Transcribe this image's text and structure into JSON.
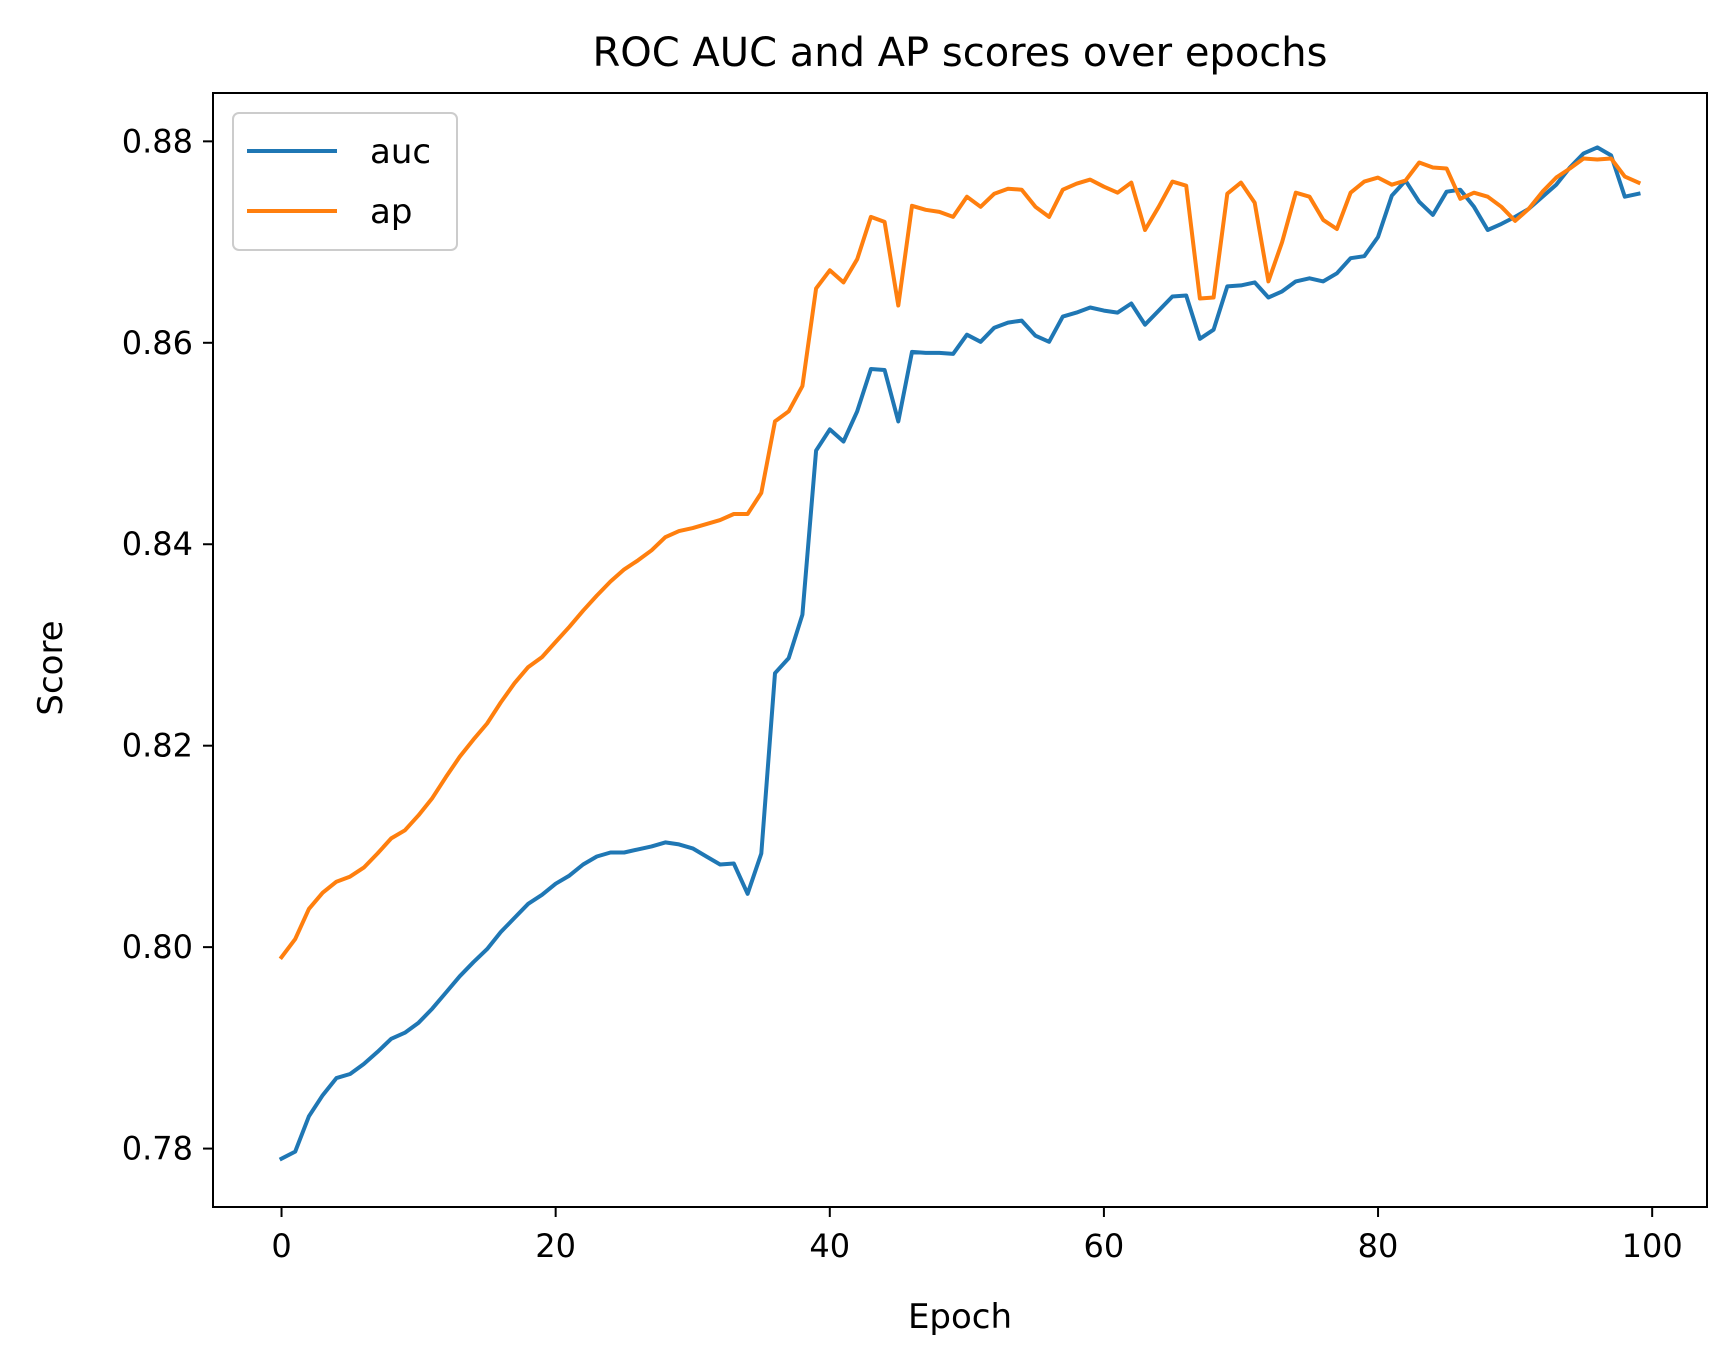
{
  "chart_data": {
    "type": "line",
    "title": "ROC AUC and AP scores over epochs",
    "xlabel": "Epoch",
    "ylabel": "Score",
    "xlim": [
      -5,
      104
    ],
    "ylim": [
      0.7742,
      0.8848
    ],
    "xticks": [
      0,
      20,
      40,
      60,
      80,
      100
    ],
    "xtick_labels": [
      "0",
      "20",
      "40",
      "60",
      "80",
      "100"
    ],
    "yticks": [
      0.78,
      0.8,
      0.82,
      0.84,
      0.86,
      0.88
    ],
    "ytick_labels": [
      "0.78",
      "0.80",
      "0.82",
      "0.84",
      "0.86",
      "0.88"
    ],
    "grid": false,
    "legend": "top-left",
    "x": [
      0,
      1,
      2,
      3,
      4,
      5,
      6,
      7,
      8,
      9,
      10,
      11,
      12,
      13,
      14,
      15,
      16,
      17,
      18,
      19,
      20,
      21,
      22,
      23,
      24,
      25,
      26,
      27,
      28,
      29,
      30,
      31,
      32,
      33,
      34,
      35,
      36,
      37,
      38,
      39,
      40,
      41,
      42,
      43,
      44,
      45,
      46,
      47,
      48,
      49,
      50,
      51,
      52,
      53,
      54,
      55,
      56,
      57,
      58,
      59,
      60,
      61,
      62,
      63,
      64,
      65,
      66,
      67,
      68,
      69,
      70,
      71,
      72,
      73,
      74,
      75,
      76,
      77,
      78,
      79,
      80,
      81,
      82,
      83,
      84,
      85,
      86,
      87,
      88,
      89,
      90,
      91,
      92,
      93,
      94,
      95,
      96,
      97,
      98,
      99
    ],
    "series": [
      {
        "name": "auc",
        "color": "#1f77b4",
        "values": [
          0.779,
          0.7797,
          0.7832,
          0.7853,
          0.787,
          0.7874,
          0.7884,
          0.7896,
          0.7909,
          0.7915,
          0.7925,
          0.7939,
          0.7955,
          0.7971,
          0.7985,
          0.7998,
          0.8015,
          0.8029,
          0.8043,
          0.8052,
          0.8063,
          0.8071,
          0.8082,
          0.809,
          0.8094,
          0.8094,
          0.8097,
          0.81,
          0.8104,
          0.8102,
          0.8098,
          0.809,
          0.8082,
          0.8083,
          0.8053,
          0.8093,
          0.8272,
          0.8287,
          0.833,
          0.8493,
          0.8514,
          0.8502,
          0.8532,
          0.8574,
          0.8573,
          0.8522,
          0.8591,
          0.859,
          0.859,
          0.8589,
          0.8608,
          0.8601,
          0.8615,
          0.862,
          0.8622,
          0.8607,
          0.8601,
          0.8626,
          0.863,
          0.8635,
          0.8632,
          0.863,
          0.8639,
          0.8618,
          0.8632,
          0.8646,
          0.8647,
          0.8604,
          0.8613,
          0.8656,
          0.8657,
          0.866,
          0.8645,
          0.8651,
          0.8661,
          0.8664,
          0.8661,
          0.8669,
          0.8684,
          0.8686,
          0.8705,
          0.8746,
          0.8761,
          0.874,
          0.8727,
          0.875,
          0.8752,
          0.8735,
          0.8712,
          0.8718,
          0.8725,
          0.8733,
          0.8745,
          0.8757,
          0.8774,
          0.8788,
          0.8794,
          0.8786,
          0.8745,
          0.8748
        ]
      },
      {
        "name": "ap",
        "color": "#ff7f0e",
        "values": [
          0.799,
          0.8008,
          0.8038,
          0.8054,
          0.8065,
          0.807,
          0.8079,
          0.8093,
          0.8108,
          0.8116,
          0.8131,
          0.8148,
          0.8169,
          0.8189,
          0.8206,
          0.8222,
          0.8243,
          0.8262,
          0.8278,
          0.8288,
          0.8303,
          0.8318,
          0.8334,
          0.8349,
          0.8363,
          0.8375,
          0.8384,
          0.8394,
          0.8407,
          0.8413,
          0.8416,
          0.842,
          0.8424,
          0.843,
          0.843,
          0.8451,
          0.8522,
          0.8532,
          0.8557,
          0.8654,
          0.8672,
          0.866,
          0.8683,
          0.8725,
          0.872,
          0.8637,
          0.8736,
          0.8732,
          0.873,
          0.8725,
          0.8745,
          0.8735,
          0.8748,
          0.8753,
          0.8752,
          0.8735,
          0.8725,
          0.8752,
          0.8758,
          0.8762,
          0.8755,
          0.8749,
          0.8759,
          0.8712,
          0.8735,
          0.876,
          0.8756,
          0.8644,
          0.8645,
          0.8748,
          0.8759,
          0.8739,
          0.8661,
          0.87,
          0.8749,
          0.8745,
          0.8722,
          0.8713,
          0.8749,
          0.876,
          0.8764,
          0.8757,
          0.8761,
          0.8779,
          0.8774,
          0.8773,
          0.8743,
          0.8749,
          0.8745,
          0.8735,
          0.8721,
          0.8733,
          0.875,
          0.8764,
          0.8773,
          0.8783,
          0.8782,
          0.8783,
          0.8765,
          0.8759
        ]
      }
    ]
  }
}
